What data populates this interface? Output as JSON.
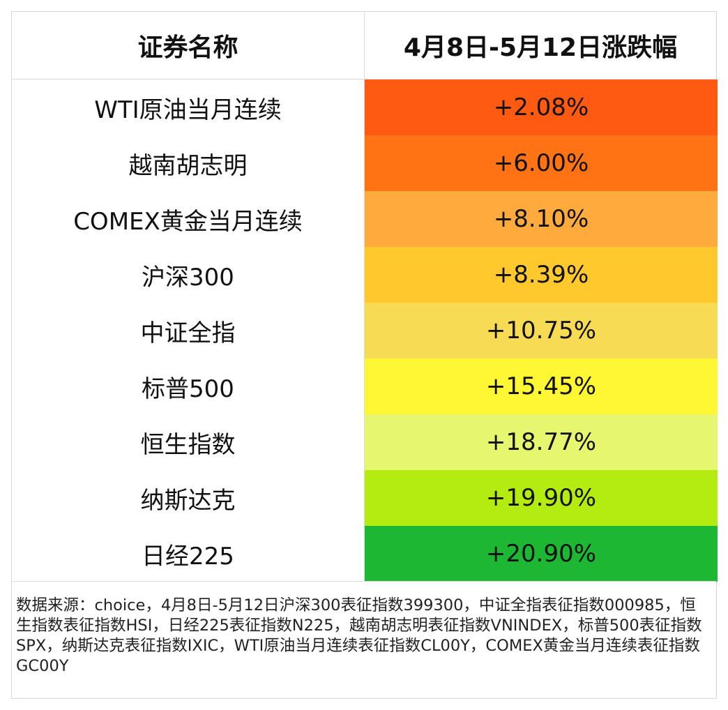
{
  "table": {
    "header": {
      "name_col": "证券名称",
      "change_col": "4月8日-5月12日涨跌幅"
    },
    "rows": [
      {
        "name": "WTI原油当月连续",
        "change": "+2.08%",
        "color": "#ff5a12"
      },
      {
        "name": "越南胡志明",
        "change": "+6.00%",
        "color": "#ff7315"
      },
      {
        "name": "COMEX黄金当月连续",
        "change": "+8.10%",
        "color": "#ffaa3c"
      },
      {
        "name": "沪深300",
        "change": "+8.39%",
        "color": "#ffc92e"
      },
      {
        "name": "中证全指",
        "change": "+10.75%",
        "color": "#f7db54"
      },
      {
        "name": "标普500",
        "change": "+15.45%",
        "color": "#fff733"
      },
      {
        "name": "恒生指数",
        "change": "+18.77%",
        "color": "#e6f76f"
      },
      {
        "name": "纳斯达克",
        "change": "+19.90%",
        "color": "#b4ec12"
      },
      {
        "name": "日经225",
        "change": "+20.90%",
        "color": "#1eb734"
      }
    ]
  },
  "footer": {
    "note": "数据来源：choice，4月8日-5月12日沪深300表征指数399300，中证全指表征指数000985，恒生指数表征指数HSI，日经225表征指数N225，越南胡志明表征指数VNINDEX，标普500表征指数SPX，纳斯达克表征指数IXIC，WTI原油当月连续表征指数CL00Y，COMEX黄金当月连续表征指数GC00Y"
  }
}
